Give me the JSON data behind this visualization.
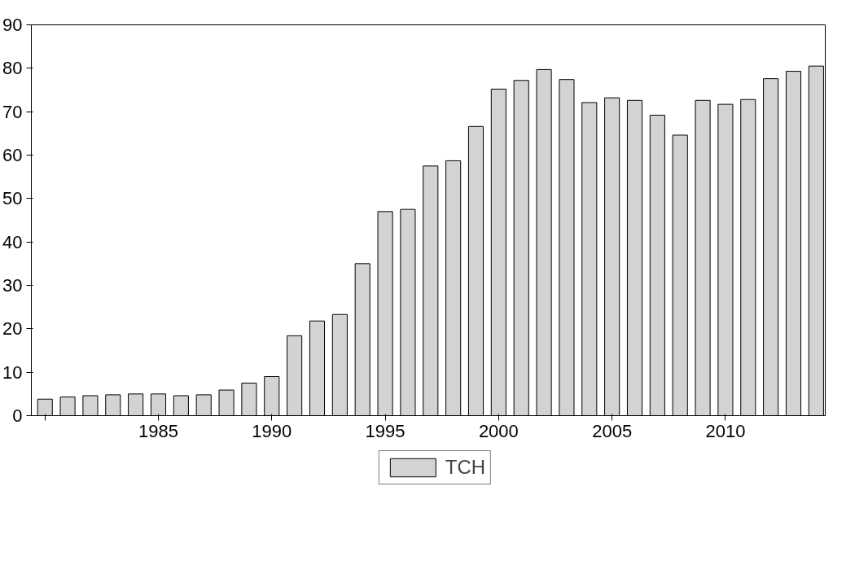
{
  "chart_data": {
    "type": "bar",
    "x": [
      1980,
      1981,
      1982,
      1983,
      1984,
      1985,
      1986,
      1987,
      1988,
      1989,
      1990,
      1991,
      1992,
      1993,
      1994,
      1995,
      1996,
      1997,
      1998,
      1999,
      2000,
      2001,
      2002,
      2003,
      2004,
      2005,
      2006,
      2007,
      2008,
      2009,
      2010,
      2011,
      2012,
      2013,
      2014
    ],
    "series": [
      {
        "name": "TCH",
        "color": "#d3d3d3",
        "values": [
          3.8,
          4.3,
          4.6,
          4.8,
          5.0,
          5.0,
          4.6,
          4.8,
          5.9,
          7.5,
          9.0,
          18.4,
          21.8,
          23.3,
          35.0,
          47.0,
          47.5,
          57.5,
          58.7,
          66.6,
          75.2,
          77.2,
          79.7,
          77.4,
          72.1,
          73.2,
          72.6,
          69.2,
          64.6,
          72.6,
          71.7,
          72.8,
          77.6,
          79.3,
          80.5
        ]
      }
    ],
    "xlim": [
      1979.4,
      2014.4
    ],
    "xticks": [
      {
        "value": 1980,
        "label": null
      },
      1985,
      1990,
      1995,
      2000,
      2005,
      2010
    ],
    "ylim": [
      0,
      90
    ],
    "yticks": [
      0,
      10,
      20,
      30,
      40,
      50,
      60,
      70,
      80,
      90
    ],
    "grid": false,
    "legend": "bottom"
  }
}
